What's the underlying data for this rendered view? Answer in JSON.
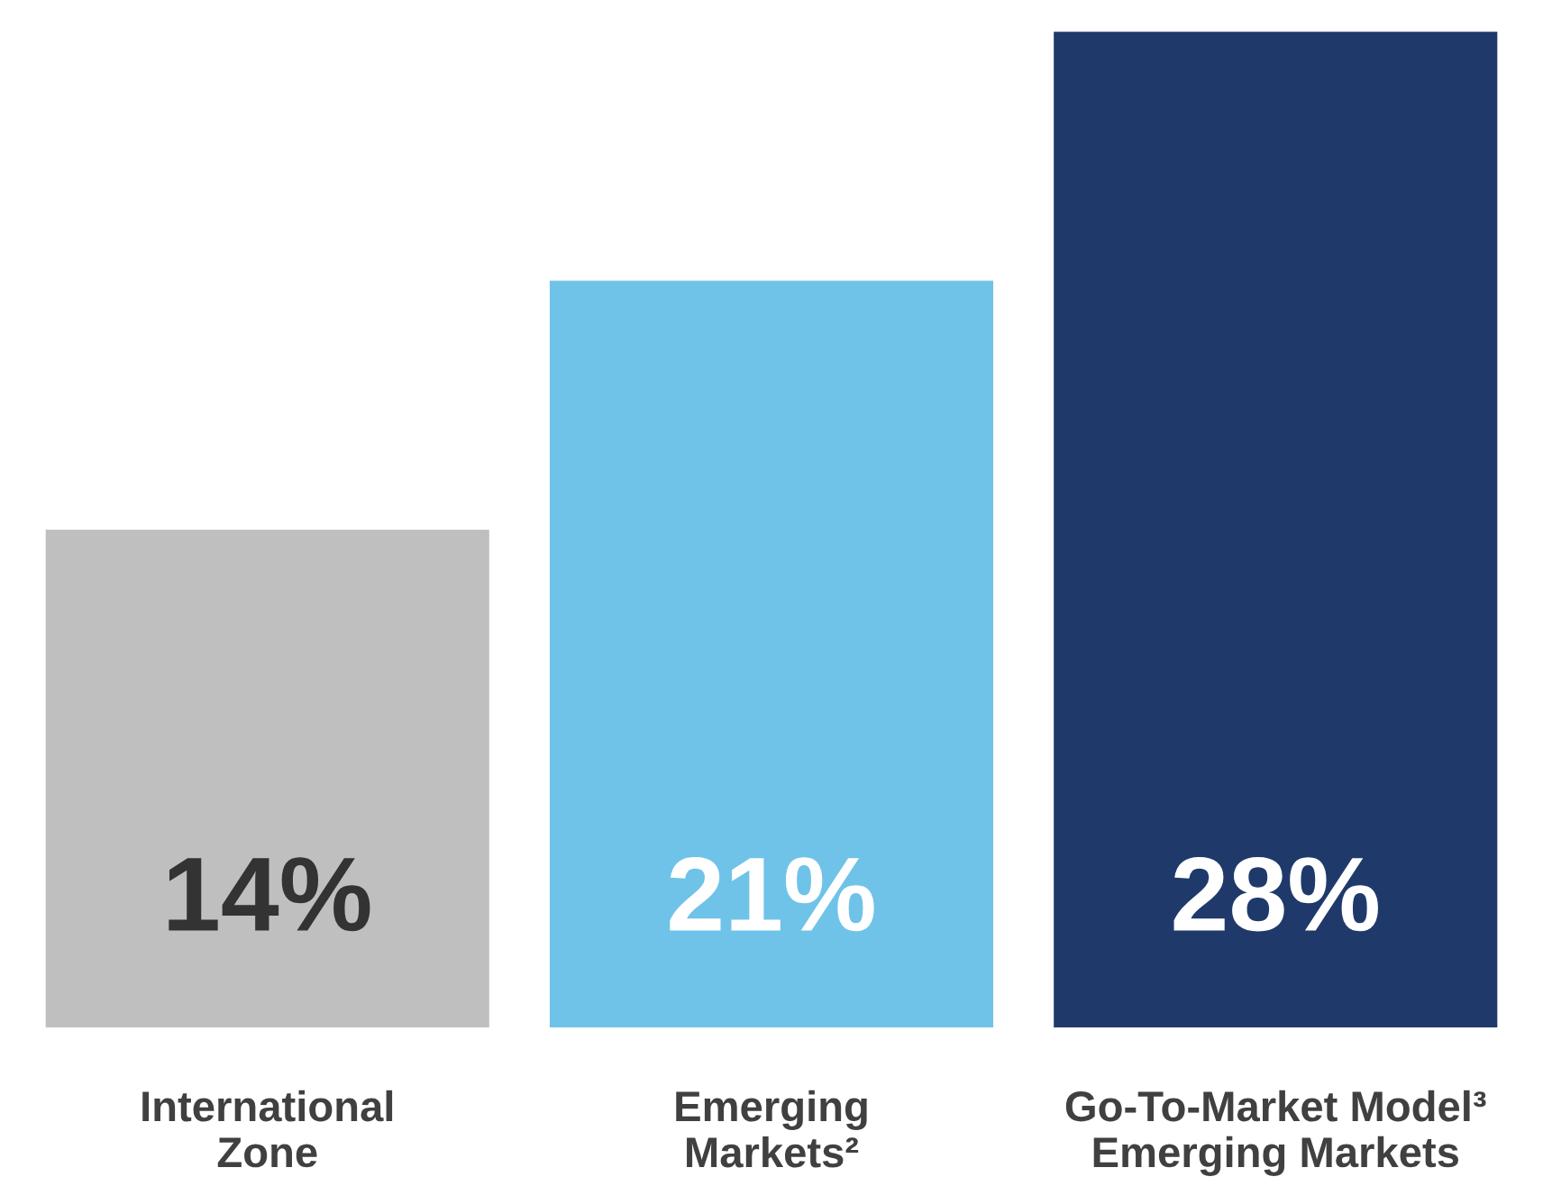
{
  "chart_data": {
    "type": "bar",
    "categories": [
      "International\nZone",
      "Emerging\nMarkets²",
      "Go-To-Market Model³\nEmerging Markets"
    ],
    "values": [
      14,
      21,
      28
    ],
    "colors": [
      "#bfbfbf",
      "#6fc3e8",
      "#1f3a6a"
    ],
    "value_labels": [
      "14%",
      "21%",
      "28%"
    ],
    "grid": false,
    "legend": false
  }
}
